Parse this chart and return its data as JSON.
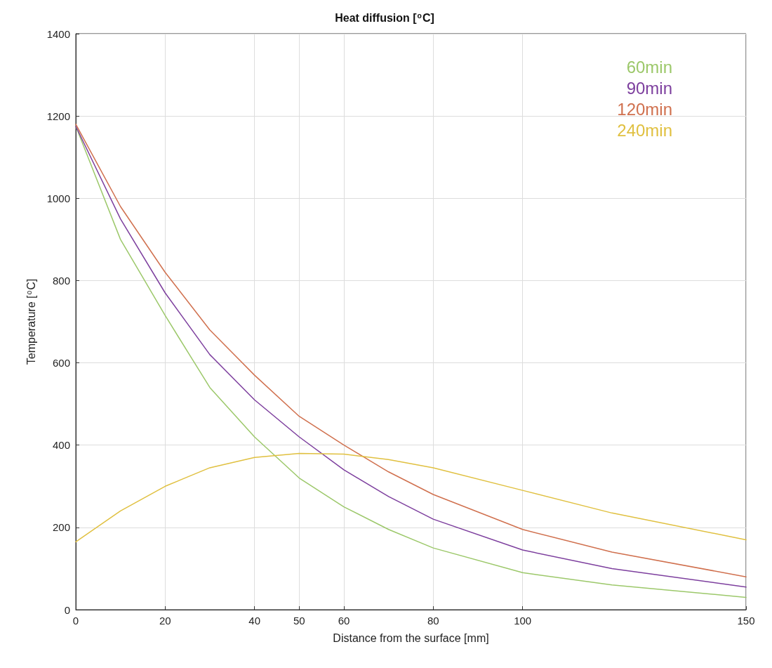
{
  "chart_data": {
    "type": "line",
    "title": "Heat diffusion [$^{o}$C]",
    "xlabel": "Distance from the surface [mm]",
    "ylabel": "Temperature [$^{o}$C]",
    "x": [
      0,
      10,
      20,
      30,
      40,
      50,
      60,
      70,
      80,
      100,
      120,
      150
    ],
    "series": [
      {
        "name": "60min",
        "color": "#9cc86a",
        "values": [
          1175,
          900,
          715,
          540,
          420,
          320,
          250,
          195,
          150,
          90,
          60,
          30
        ]
      },
      {
        "name": "90min",
        "color": "#7d3f9e",
        "values": [
          1175,
          950,
          770,
          620,
          510,
          420,
          340,
          275,
          220,
          145,
          100,
          55
        ]
      },
      {
        "name": "120min",
        "color": "#d0704e",
        "values": [
          1180,
          980,
          820,
          680,
          570,
          470,
          400,
          335,
          280,
          195,
          140,
          80
        ]
      },
      {
        "name": "240min",
        "color": "#e0c040",
        "values": [
          165,
          240,
          300,
          345,
          370,
          380,
          378,
          365,
          345,
          290,
          235,
          170
        ]
      }
    ],
    "xlim": [
      0,
      150
    ],
    "xticks": [
      0,
      20,
      40,
      50,
      60,
      80,
      100,
      150
    ],
    "ylim": [
      0,
      1400
    ],
    "yticks": [
      0,
      200,
      400,
      600,
      800,
      1000,
      1200,
      1400
    ],
    "grid": true,
    "legend": "top right",
    "marker": "none",
    "line_style": "solid"
  }
}
